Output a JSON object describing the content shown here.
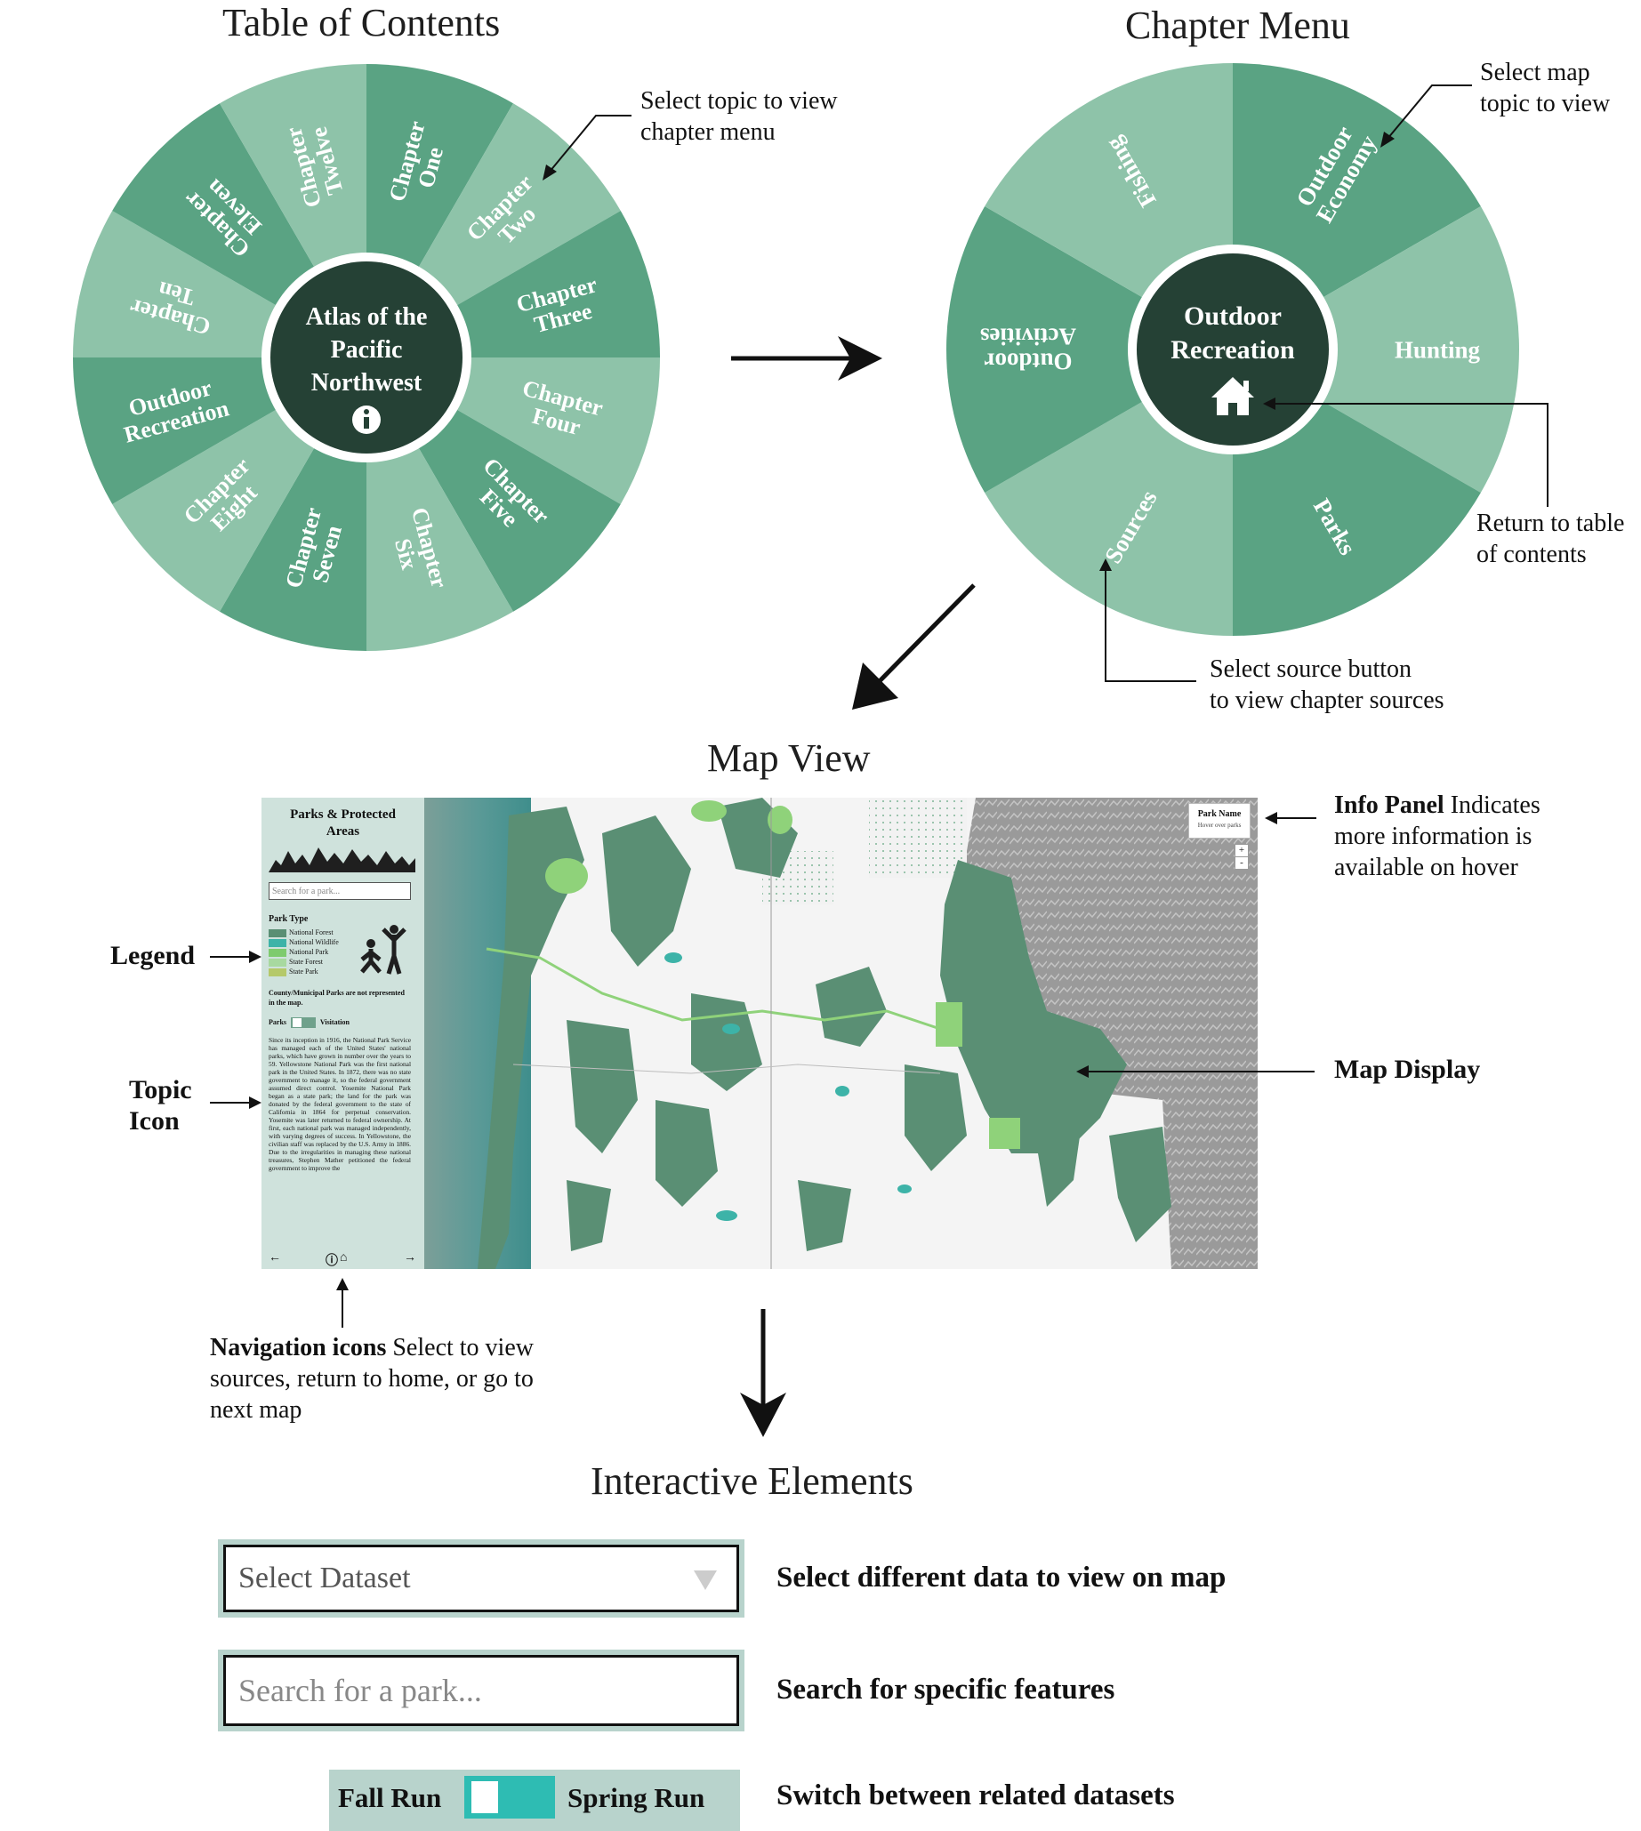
{
  "toc": {
    "title": "Table of Contents",
    "center": [
      "Atlas of the",
      "Pacific",
      "Northwest"
    ],
    "chapters": [
      "Chapter One",
      "Chapter Two",
      "Chapter Three",
      "Chapter Four",
      "Chapter Five",
      "Chapter Six",
      "Chapter Seven",
      "Chapter Eight",
      "Outdoor Recreation",
      "Chapter Ten",
      "Chapter Eleven",
      "Chapter Twelve"
    ],
    "annotation": [
      "Select topic to view",
      "chapter menu"
    ]
  },
  "chapter_menu": {
    "title": "Chapter Menu",
    "center": [
      "Outdoor",
      "Recreation"
    ],
    "segments": [
      "Outdoor Economy",
      "Hunting",
      "Parks",
      "Sources",
      "Outdoor Activities",
      "Fishing"
    ],
    "annotations": {
      "select_map": [
        "Select map",
        "topic to view"
      ],
      "return": [
        "Return to table",
        "of contents"
      ],
      "sources": [
        "Select source button",
        "to view chapter sources"
      ]
    }
  },
  "map_view": {
    "title": "Map View",
    "panel": {
      "title_line1": "Parks & Protected",
      "title_line2": "Areas",
      "search_placeholder": "Search for a park...",
      "legend_title": "Park Type",
      "legend": [
        {
          "label": "National Forest",
          "color": "#5a8f74"
        },
        {
          "label": "National Wildlife",
          "color": "#3db3a8"
        },
        {
          "label": "National Park",
          "color": "#7ecb6e"
        },
        {
          "label": "State Forest",
          "color": "#a8d9a0"
        },
        {
          "label": "State Park",
          "color": "#b5c96a"
        }
      ],
      "note": "County/Municipal Parks are not represented in the map.",
      "toggle_left": "Parks",
      "toggle_right": "Visitation",
      "body": "Since its inception in 1916, the National Park Service has managed each of the United States' national parks, which have grown in number over the years to 59. Yellowstone National Park was the first national park in the United States. In 1872, there was no state government to manage it, so the federal government assumed direct control. Yosemite National Park began as a state park; the land for the park was donated by the federal government to the state of California in 1864 for perpetual conservation. Yosemite was later returned to federal ownership. At first, each national park was managed independently, with varying degrees of success. In Yellowstone, the civilian staff was replaced by the U.S. Army in 1886. Due to the irregularities in managing these national treasures, Stephen Mather petitioned the federal government to improve the"
    },
    "info_panel": {
      "title": "Park Name",
      "subtitle": "Hover over parks"
    },
    "zoom_in": "+",
    "zoom_out": "-",
    "labels": {
      "legend": "Legend",
      "topic_icon": [
        "Topic",
        "Icon"
      ],
      "info_panel_bold": "Info Panel",
      "info_panel_rest": [
        " Indicates",
        "more information is",
        "available on hover"
      ],
      "map_display": "Map Display",
      "nav_bold": "Navigation icons",
      "nav_rest": [
        " Select to view",
        "sources, return to home, or go to",
        "next map"
      ]
    }
  },
  "interactive": {
    "title": "Interactive Elements",
    "select_placeholder": "Select Dataset",
    "search_placeholder": "Search for a park...",
    "toggle_left": "Fall Run",
    "toggle_right": "Spring Run",
    "desc_select": "Select different data to view on map",
    "desc_search": "Search for specific features",
    "desc_toggle": "Switch between related datasets"
  },
  "colors": {
    "dark_green": "#5aa383",
    "light_green": "#8ec3a9",
    "center": "#254135",
    "teal": "#2ebcb3",
    "panel_bg": "#cfe2dc",
    "control_frame": "#b8d3cc"
  }
}
